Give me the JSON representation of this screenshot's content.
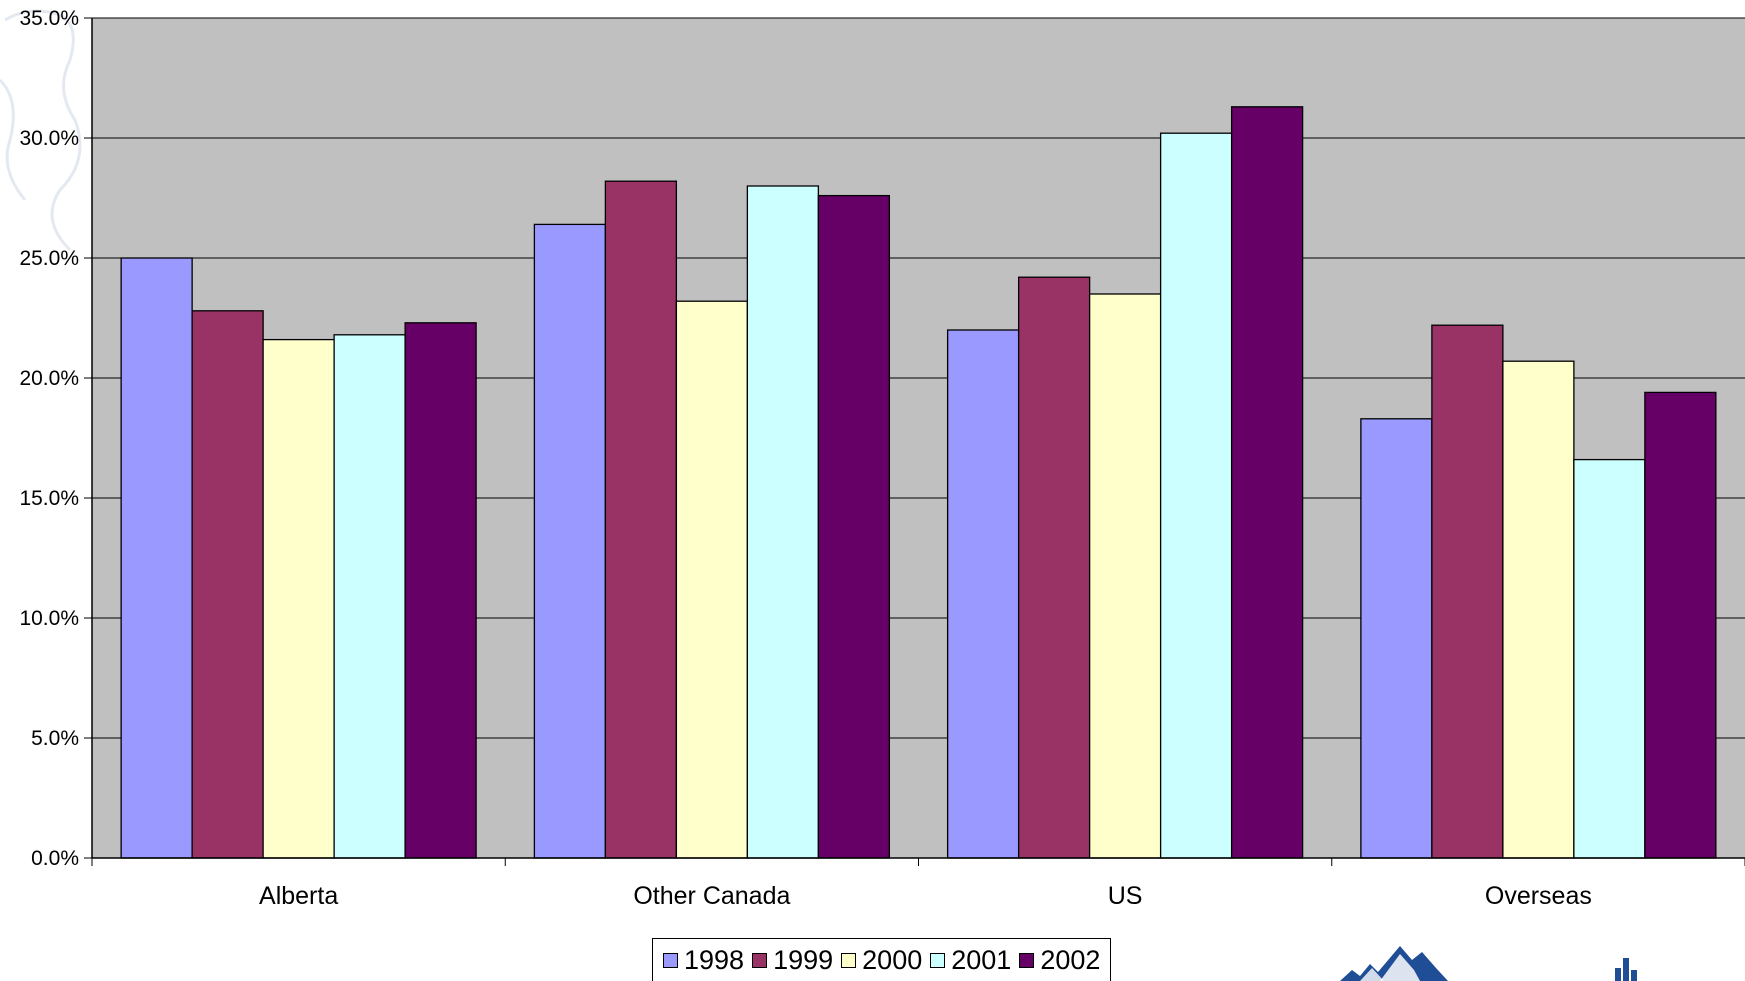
{
  "chart_data": {
    "type": "bar",
    "title": "",
    "xlabel": "",
    "ylabel": "",
    "categories": [
      "Alberta",
      "Other Canada",
      "US",
      "Overseas"
    ],
    "ylim": [
      0,
      35
    ],
    "yticks": [
      "0.0%",
      "5.0%",
      "10.0%",
      "15.0%",
      "20.0%",
      "25.0%",
      "30.0%",
      "35.0%"
    ],
    "grid": true,
    "legend": "bottom",
    "series": [
      {
        "name": "1998",
        "color": "#9999ff",
        "values": [
          25.0,
          26.4,
          22.0,
          18.3
        ]
      },
      {
        "name": "1999",
        "color": "#993366",
        "values": [
          22.8,
          28.2,
          24.2,
          22.2
        ]
      },
      {
        "name": "2000",
        "color": "#ffffcc",
        "values": [
          21.6,
          23.2,
          23.5,
          20.7
        ]
      },
      {
        "name": "2001",
        "color": "#ccffff",
        "values": [
          21.8,
          28.0,
          30.2,
          16.6
        ]
      },
      {
        "name": "2002",
        "color": "#660066",
        "values": [
          22.3,
          27.6,
          31.3,
          19.4
        ]
      }
    ],
    "plot_background": "#c0c0c0"
  },
  "logo": {
    "name": "mountain-logo"
  }
}
